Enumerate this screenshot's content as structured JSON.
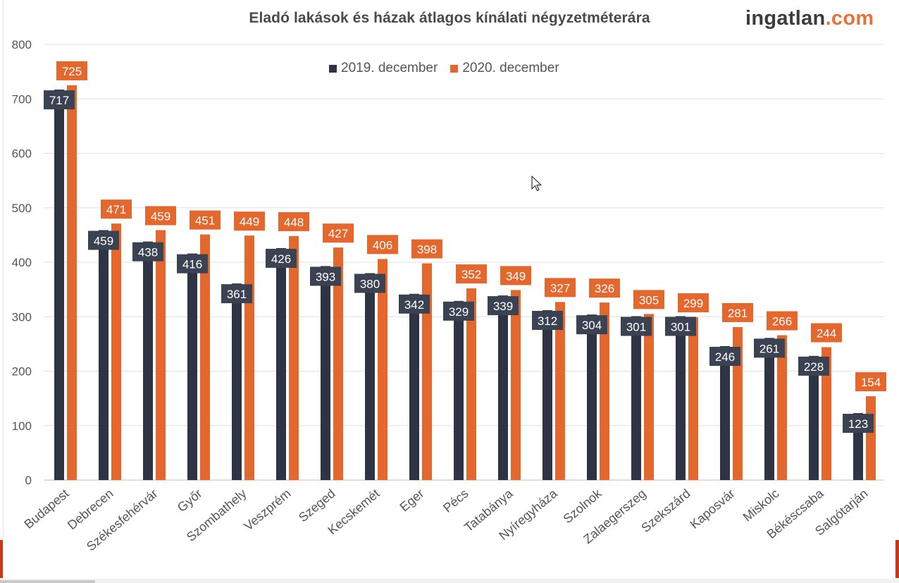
{
  "chart_data": {
    "type": "bar",
    "title": "Eladó lakások és házak átlagos kínálati négyzetméterára",
    "xlabel": "",
    "ylabel": "",
    "ylim": [
      0,
      800
    ],
    "yticks": [
      0,
      100,
      200,
      300,
      400,
      500,
      600,
      700,
      800
    ],
    "grid": true,
    "legend_position": "top-center",
    "categories": [
      "Budapest",
      "Debrecen",
      "Székesfehérvár",
      "Győr",
      "Szombathely",
      "Veszprém",
      "Szeged",
      "Kecskemét",
      "Eger",
      "Pécs",
      "Tatabánya",
      "Nyíregyháza",
      "Szolnok",
      "Zalaegerszeg",
      "Szekszárd",
      "Kaposvár",
      "Miskolc",
      "Békéscsaba",
      "Salgótarján"
    ],
    "series": [
      {
        "name": "2019. december",
        "color": "#2e3444",
        "values": [
          717,
          459,
          438,
          416,
          361,
          426,
          393,
          380,
          342,
          329,
          339,
          312,
          304,
          301,
          301,
          246,
          261,
          228,
          123
        ]
      },
      {
        "name": "2020. december",
        "color": "#e4672d",
        "values": [
          725,
          471,
          459,
          451,
          449,
          448,
          427,
          406,
          398,
          352,
          349,
          327,
          326,
          305,
          299,
          281,
          266,
          244,
          154
        ]
      }
    ]
  },
  "logo": {
    "main": "ingatlan",
    "suffix": ".com",
    "suffix_color": "#e8733a"
  },
  "icons": {
    "cursor": "mouse-pointer-icon"
  }
}
